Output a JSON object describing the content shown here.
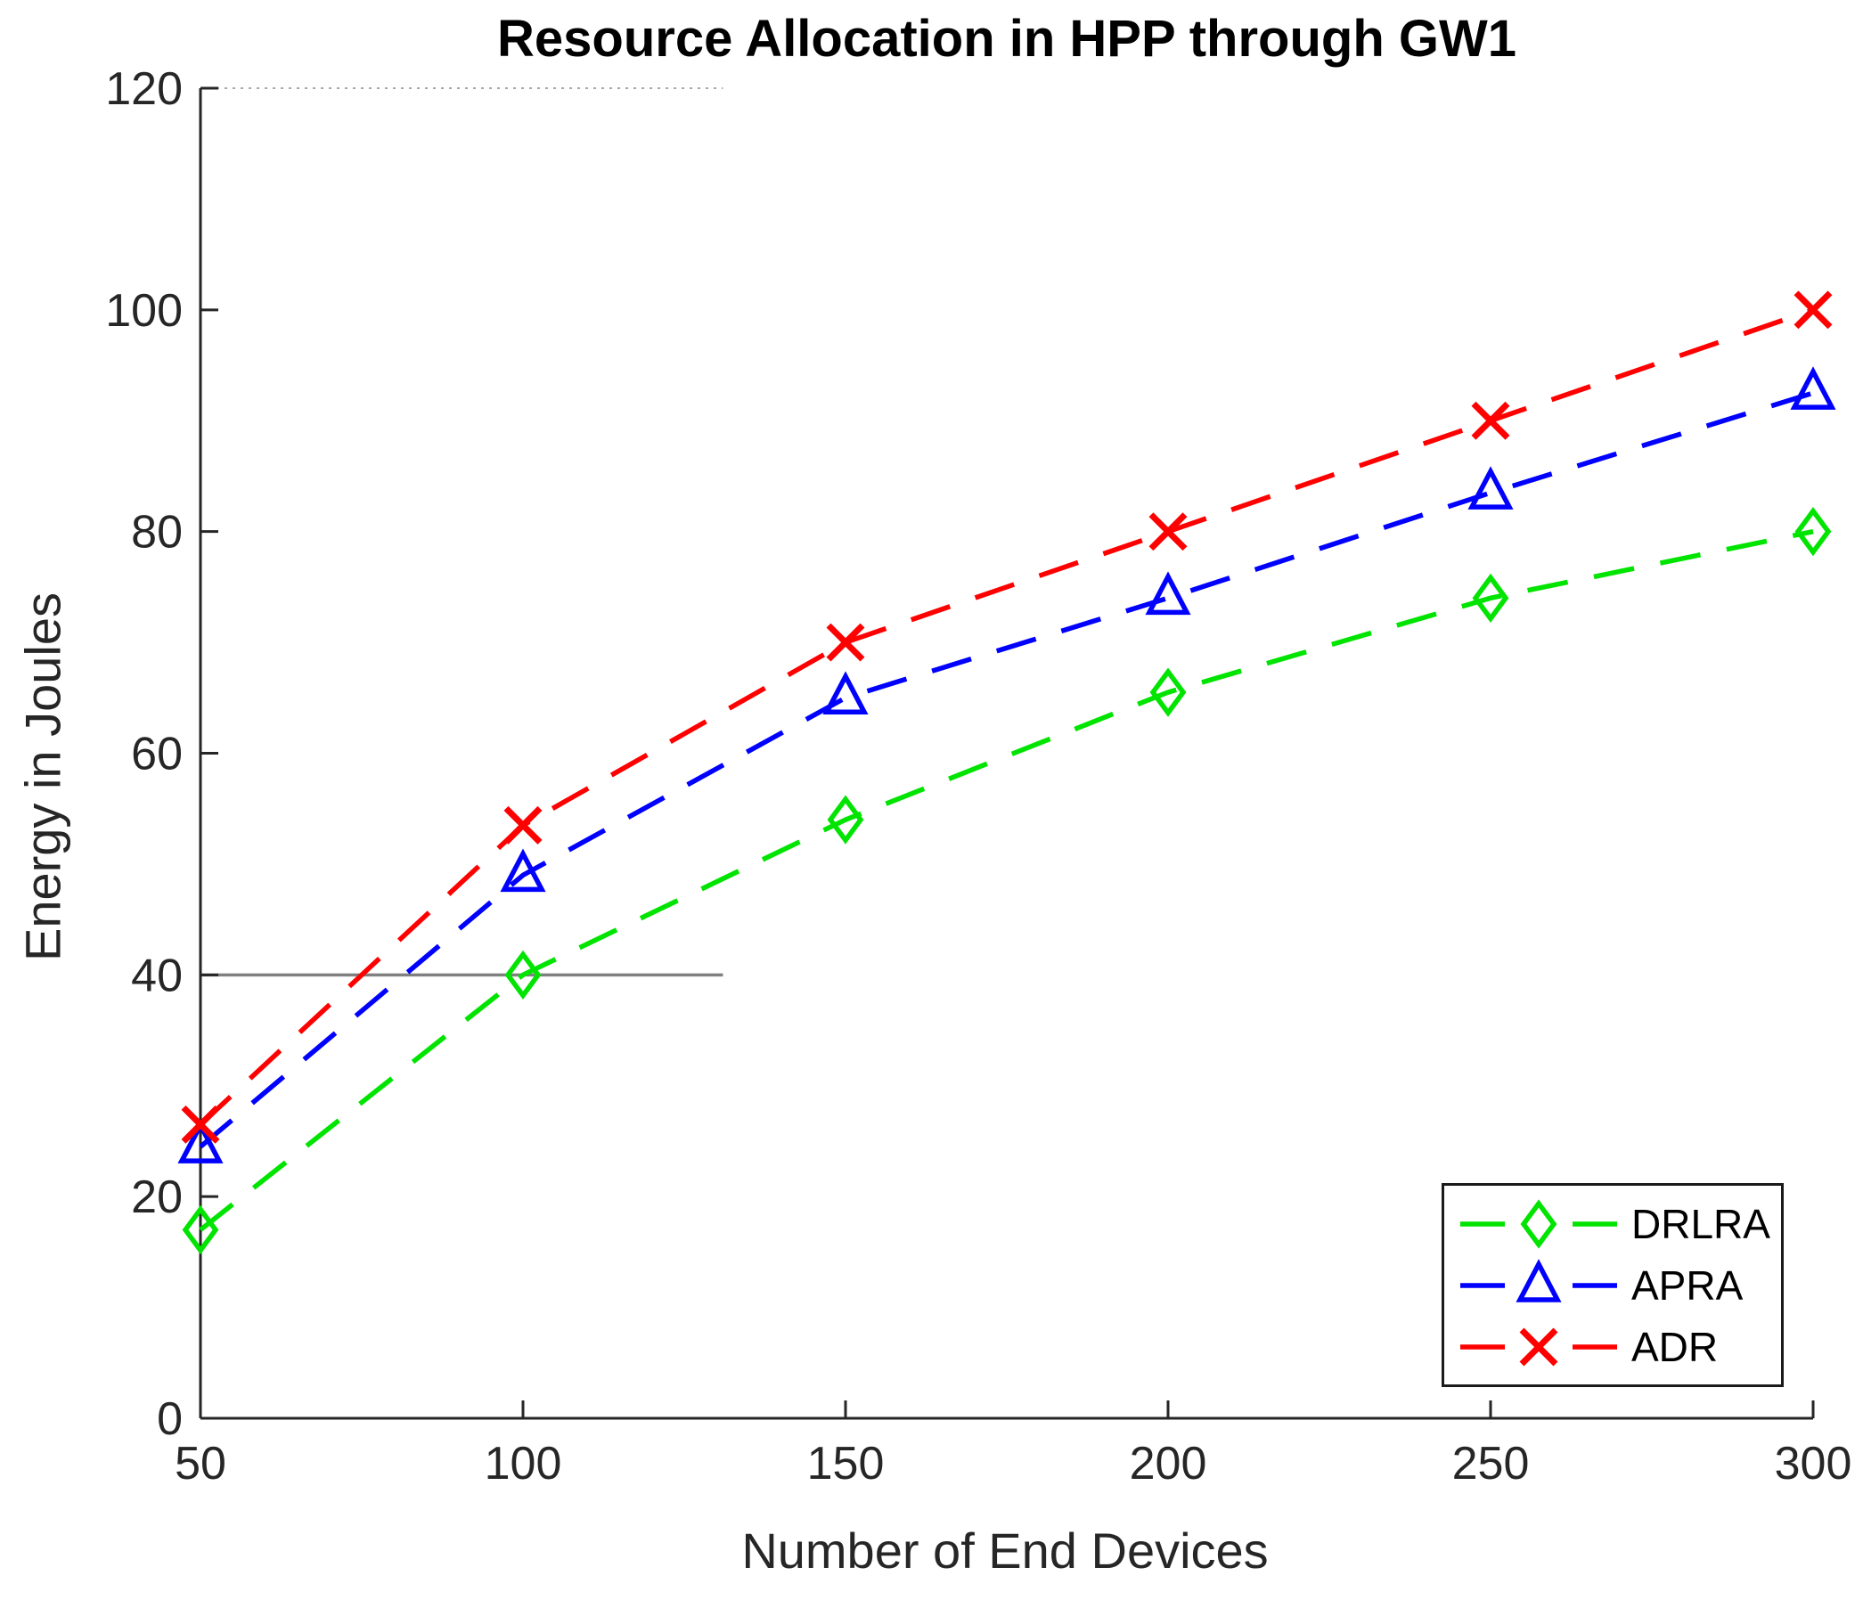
{
  "chart_data": {
    "type": "line",
    "title": "Resource Allocation in HPP through GW1",
    "xlabel": "Number of End Devices",
    "ylabel": "Energy in Joules",
    "x": [
      50,
      100,
      150,
      200,
      250,
      300
    ],
    "xlim": [
      50,
      300
    ],
    "ylim": [
      0,
      120
    ],
    "xticks": [
      50,
      100,
      150,
      200,
      250,
      300
    ],
    "yticks": [
      0,
      20,
      40,
      60,
      80,
      100,
      120
    ],
    "grid": "off",
    "legend_position": "lower right",
    "axis_color": "#262626",
    "series": [
      {
        "name": "DRLRA",
        "color": "#00e400",
        "marker": "diamond",
        "linestyle": "dashed",
        "values": [
          17,
          40,
          54,
          65.5,
          74,
          80
        ]
      },
      {
        "name": "APRA",
        "color": "#0000ff",
        "marker": "triangle",
        "linestyle": "dashed",
        "values": [
          24.5,
          49,
          65,
          74,
          83.5,
          92.5
        ]
      },
      {
        "name": "ADR",
        "color": "#ff0000",
        "marker": "x",
        "linestyle": "dashed",
        "values": [
          26.5,
          53.5,
          70,
          80,
          90,
          100
        ]
      }
    ],
    "partial_lines": [
      {
        "y": 120,
        "x_from": 50,
        "x_to": 131,
        "style": "dotted",
        "color": "#a8a8a8"
      },
      {
        "y": 40,
        "x_from": 50,
        "x_to": 131,
        "style": "solid",
        "color": "#808080"
      }
    ]
  }
}
